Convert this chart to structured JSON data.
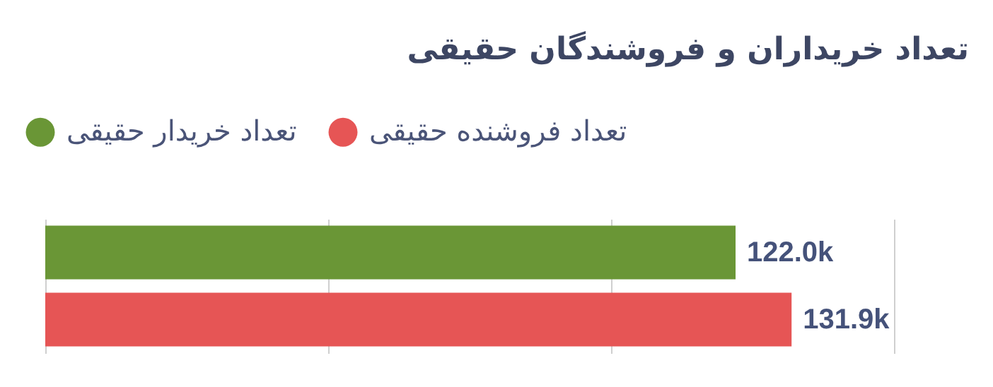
{
  "chart_data": {
    "type": "bar",
    "orientation": "horizontal",
    "title": "تعداد خریداران و فروشندگان حقیقی",
    "categories": [
      null
    ],
    "series": [
      {
        "name": "تعداد خریدار حقیقی",
        "color": "#6a9636",
        "values": [
          122.0
        ],
        "value_labels": [
          "122.0k"
        ]
      },
      {
        "name": "تعداد فروشنده حقیقی",
        "color": "#e65555",
        "values": [
          131.9
        ],
        "value_labels": [
          "131.9k"
        ]
      }
    ],
    "xlim": [
      0,
      150
    ],
    "xticks": [
      0,
      50,
      100,
      150
    ],
    "grid": "x",
    "legend": "top left",
    "tick_labels": false
  }
}
